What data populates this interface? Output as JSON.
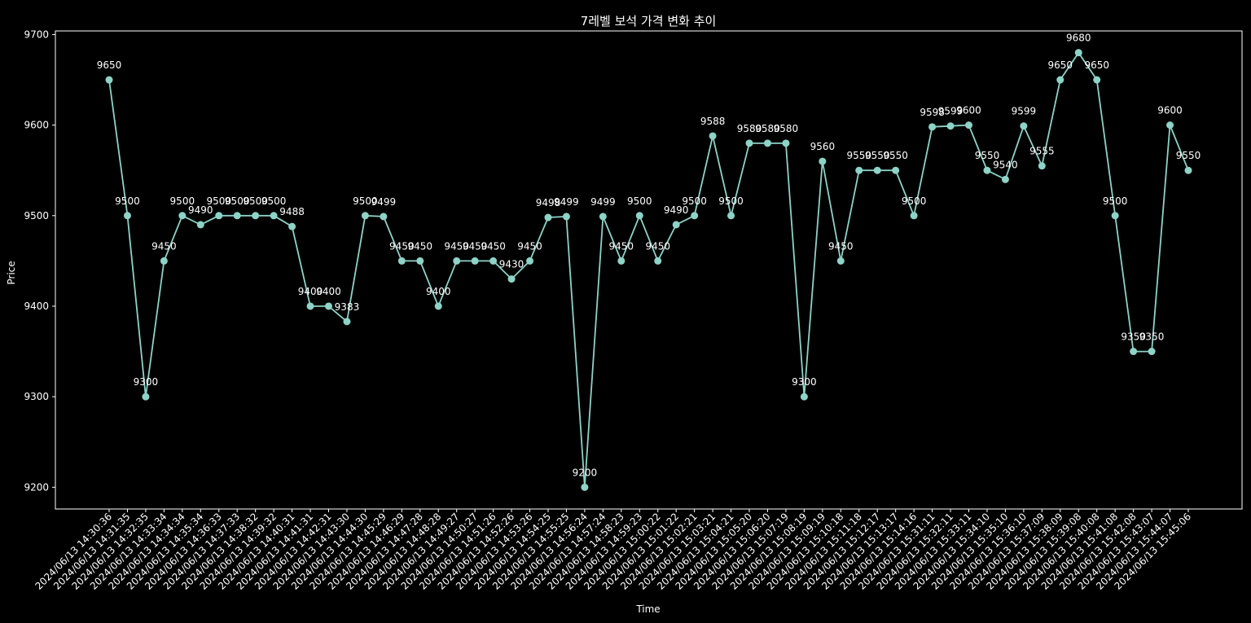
{
  "chart_data": {
    "type": "line",
    "title": "7레벨 보석 가격 변화 추이",
    "xlabel": "Time",
    "ylabel": "Price",
    "ylim": [
      9176,
      9704
    ],
    "yticks": [
      9200,
      9300,
      9400,
      9500,
      9600,
      9700
    ],
    "grid": false,
    "color": "#8dd3c7",
    "background": "#000000",
    "categories": [
      "2024/06/13 14:30:36",
      "2024/06/13 14:31:35",
      "2024/06/13 14:32:35",
      "2024/06/13 14:33:34",
      "2024/06/13 14:34:34",
      "2024/06/13 14:35:34",
      "2024/06/13 14:36:33",
      "2024/06/13 14:37:33",
      "2024/06/13 14:38:32",
      "2024/06/13 14:39:32",
      "2024/06/13 14:40:31",
      "2024/06/13 14:41:31",
      "2024/06/13 14:42:31",
      "2024/06/13 14:43:30",
      "2024/06/13 14:44:30",
      "2024/06/13 14:45:29",
      "2024/06/13 14:46:29",
      "2024/06/13 14:47:28",
      "2024/06/13 14:48:28",
      "2024/06/13 14:49:27",
      "2024/06/13 14:50:27",
      "2024/06/13 14:51:26",
      "2024/06/13 14:52:26",
      "2024/06/13 14:53:26",
      "2024/06/13 14:54:25",
      "2024/06/13 14:55:25",
      "2024/06/13 14:56:24",
      "2024/06/13 14:57:24",
      "2024/06/13 14:58:23",
      "2024/06/13 14:59:23",
      "2024/06/13 15:00:22",
      "2024/06/13 15:01:22",
      "2024/06/13 15:02:21",
      "2024/06/13 15:03:21",
      "2024/06/13 15:04:21",
      "2024/06/13 15:05:20",
      "2024/06/13 15:06:20",
      "2024/06/13 15:07:19",
      "2024/06/13 15:08:19",
      "2024/06/13 15:09:19",
      "2024/06/13 15:10:18",
      "2024/06/13 15:11:18",
      "2024/06/13 15:12:17",
      "2024/06/13 15:13:17",
      "2024/06/13 15:14:16",
      "2024/06/13 15:31:11",
      "2024/06/13 15:32:11",
      "2024/06/13 15:33:11",
      "2024/06/13 15:34:10",
      "2024/06/13 15:35:10",
      "2024/06/13 15:36:10",
      "2024/06/13 15:37:09",
      "2024/06/13 15:38:09",
      "2024/06/13 15:39:08",
      "2024/06/13 15:40:08",
      "2024/06/13 15:41:08",
      "2024/06/13 15:42:08",
      "2024/06/13 15:43:07",
      "2024/06/13 15:44:07",
      "2024/06/13 15:45:06"
    ],
    "values": [
      9650,
      9500,
      9300,
      9450,
      9500,
      9490,
      9500,
      9500,
      9500,
      9500,
      9488,
      9400,
      9400,
      9383,
      9500,
      9499,
      9450,
      9450,
      9400,
      9450,
      9450,
      9450,
      9430,
      9450,
      9498,
      9499,
      9200,
      9499,
      9450,
      9500,
      9450,
      9490,
      9500,
      9588,
      9500,
      9580,
      9580,
      9580,
      9300,
      9560,
      9450,
      9550,
      9550,
      9550,
      9500,
      9598,
      9599,
      9600,
      9550,
      9540,
      9599,
      9555,
      9650,
      9680,
      9650,
      9500,
      9350,
      9350,
      9600,
      9550
    ]
  }
}
